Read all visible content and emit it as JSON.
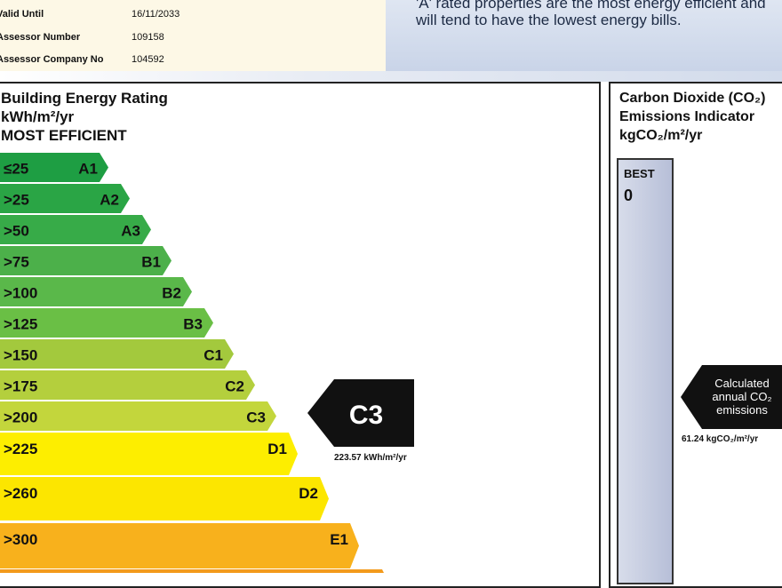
{
  "info": {
    "rows": [
      {
        "label": "Valid Until",
        "value": "16/11/2033"
      },
      {
        "label": "Assessor Number",
        "value": "109158"
      },
      {
        "label": "Assessor Company No",
        "value": "104592"
      }
    ]
  },
  "note_text": "'A' rated properties are the most energy efficient and will tend to have the lowest energy bills.",
  "ber": {
    "title_line1": "Building Energy Rating",
    "title_line2": "kWh/m²/yr",
    "title_line3": "MOST EFFICIENT",
    "current_value": "223.57 kWh/m²/yr"
  },
  "co2": {
    "title_line1": "Carbon Dioxide (CO₂)",
    "title_line2": "Emissions Indicator",
    "title_line3": "kgCO₂/m²/yr",
    "best_label": "BEST",
    "best_value": "0",
    "calc_label": "Calculated annual CO₂ emissions",
    "calc_value": "61.24 kgCO₂/m²/yr"
  },
  "chart_data": {
    "type": "bar",
    "title": "Building Energy Rating",
    "ylabel": "kWh/m²/yr",
    "categories": [
      "A1",
      "A2",
      "A3",
      "B1",
      "B2",
      "B3",
      "C1",
      "C2",
      "C3",
      "D1",
      "D2",
      "E1"
    ],
    "thresholds": [
      "≤25",
      ">25",
      ">50",
      ">75",
      ">100",
      ">125",
      ">150",
      ">175",
      ">200",
      ">225",
      ">260",
      ">300"
    ],
    "colors": [
      "#1e9e43",
      "#2aa545",
      "#37ab48",
      "#4cb04a",
      "#5ab84a",
      "#6abf45",
      "#a3c93d",
      "#b4cf3d",
      "#c3d63c",
      "#fdee00",
      "#fce600",
      "#f8b11c"
    ],
    "current": {
      "rating": "C3",
      "value": 223.57,
      "unit": "kWh/m²/yr"
    },
    "co2_value": 61.24
  }
}
